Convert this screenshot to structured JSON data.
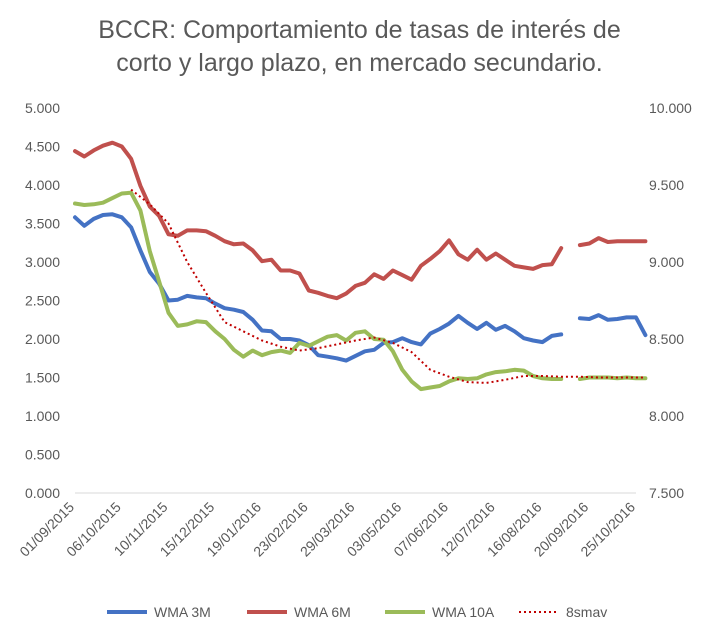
{
  "chart_data": {
    "type": "line",
    "title_lines": [
      "BCCR: Comportamiento de tasas de interés de",
      "corto y largo plazo, en mercado secundario."
    ],
    "y_left": {
      "min": 0,
      "max": 5,
      "step": 0.5,
      "tick_labels": [
        "0.000",
        "0.500",
        "1.000",
        "1.500",
        "2.000",
        "2.500",
        "3.000",
        "3.500",
        "4.000",
        "4.500",
        "5.000"
      ]
    },
    "y_right": {
      "min": 7.5,
      "max": 10,
      "step": 0.5,
      "tick_labels": [
        "7.500",
        "8.000",
        "8.500",
        "9.000",
        "9.500",
        "10.000"
      ]
    },
    "x_range": [
      "2015-09-01",
      "2016-10-25"
    ],
    "x_tick_labels": [
      "01/09/2015",
      "06/10/2015",
      "10/11/2015",
      "15/12/2015",
      "19/01/2016",
      "23/02/2016",
      "29/03/2016",
      "03/05/2016",
      "07/06/2016",
      "12/07/2016",
      "16/08/2016",
      "20/09/2016",
      "25/10/2016"
    ],
    "grid": false,
    "legend_position": "bottom",
    "series": [
      {
        "name": "WMA 3M",
        "axis": "left",
        "color": "#4472C4",
        "style": "solid",
        "points": [
          [
            "2015-09-01",
            3.58
          ],
          [
            "2015-09-08",
            3.47
          ],
          [
            "2015-09-15",
            3.56
          ],
          [
            "2015-09-22",
            3.61
          ],
          [
            "2015-09-29",
            3.62
          ],
          [
            "2015-10-06",
            3.58
          ],
          [
            "2015-10-13",
            3.45
          ],
          [
            "2015-10-20",
            3.15
          ],
          [
            "2015-10-27",
            2.87
          ],
          [
            "2015-11-03",
            2.72
          ],
          [
            "2015-11-10",
            2.5
          ],
          [
            "2015-11-17",
            2.51
          ],
          [
            "2015-11-24",
            2.56
          ],
          [
            "2015-12-01",
            2.54
          ],
          [
            "2015-12-08",
            2.53
          ],
          [
            "2015-12-15",
            2.46
          ],
          [
            "2015-12-22",
            2.4
          ],
          [
            "2015-12-29",
            2.38
          ],
          [
            "2016-01-05",
            2.35
          ],
          [
            "2016-01-12",
            2.25
          ],
          [
            "2016-01-19",
            2.11
          ],
          [
            "2016-01-26",
            2.1
          ],
          [
            "2016-02-02",
            2.0
          ],
          [
            "2016-02-09",
            2.0
          ],
          [
            "2016-02-16",
            1.98
          ],
          [
            "2016-02-23",
            1.92
          ],
          [
            "2016-03-01",
            1.79
          ],
          [
            "2016-03-08",
            1.77
          ],
          [
            "2016-03-15",
            1.75
          ],
          [
            "2016-03-22",
            1.72
          ],
          [
            "2016-03-29",
            1.78
          ],
          [
            "2016-04-05",
            1.84
          ],
          [
            "2016-04-12",
            1.86
          ],
          [
            "2016-04-19",
            1.95
          ],
          [
            "2016-04-26",
            1.96
          ],
          [
            "2016-05-03",
            2.01
          ],
          [
            "2016-05-10",
            1.96
          ],
          [
            "2016-05-17",
            1.93
          ],
          [
            "2016-05-24",
            2.07
          ],
          [
            "2016-05-31",
            2.13
          ],
          [
            "2016-06-07",
            2.2
          ],
          [
            "2016-06-14",
            2.3
          ],
          [
            "2016-06-21",
            2.21
          ],
          [
            "2016-06-28",
            2.13
          ],
          [
            "2016-07-05",
            2.21
          ],
          [
            "2016-07-12",
            2.12
          ],
          [
            "2016-07-19",
            2.17
          ],
          [
            "2016-07-26",
            2.1
          ],
          [
            "2016-08-02",
            2.01
          ],
          [
            "2016-08-09",
            1.98
          ],
          [
            "2016-08-16",
            1.96
          ],
          [
            "2016-08-23",
            2.04
          ],
          [
            "2016-08-30",
            2.06
          ],
          [
            "2016-09-06",
            null
          ],
          [
            "2016-09-13",
            2.27
          ],
          [
            "2016-09-20",
            2.26
          ],
          [
            "2016-09-27",
            2.31
          ],
          [
            "2016-10-04",
            2.25
          ],
          [
            "2016-10-11",
            2.26
          ],
          [
            "2016-10-18",
            2.28
          ],
          [
            "2016-10-25",
            2.28
          ],
          [
            "2016-11-01",
            2.05
          ]
        ]
      },
      {
        "name": "WMA 6M",
        "axis": "left",
        "color": "#C0504D",
        "style": "solid",
        "points": [
          [
            "2015-09-01",
            4.44
          ],
          [
            "2015-09-08",
            4.37
          ],
          [
            "2015-09-15",
            4.45
          ],
          [
            "2015-09-22",
            4.51
          ],
          [
            "2015-09-29",
            4.55
          ],
          [
            "2015-10-06",
            4.5
          ],
          [
            "2015-10-13",
            4.34
          ],
          [
            "2015-10-20",
            3.99
          ],
          [
            "2015-10-27",
            3.72
          ],
          [
            "2015-11-03",
            3.6
          ],
          [
            "2015-11-10",
            3.36
          ],
          [
            "2015-11-17",
            3.34
          ],
          [
            "2015-11-24",
            3.41
          ],
          [
            "2015-12-01",
            3.41
          ],
          [
            "2015-12-08",
            3.4
          ],
          [
            "2015-12-15",
            3.34
          ],
          [
            "2015-12-22",
            3.27
          ],
          [
            "2015-12-29",
            3.23
          ],
          [
            "2016-01-05",
            3.24
          ],
          [
            "2016-01-12",
            3.15
          ],
          [
            "2016-01-19",
            3.01
          ],
          [
            "2016-01-26",
            3.03
          ],
          [
            "2016-02-02",
            2.89
          ],
          [
            "2016-02-09",
            2.89
          ],
          [
            "2016-02-16",
            2.85
          ],
          [
            "2016-02-23",
            2.63
          ],
          [
            "2016-03-01",
            2.6
          ],
          [
            "2016-03-08",
            2.56
          ],
          [
            "2016-03-15",
            2.53
          ],
          [
            "2016-03-22",
            2.59
          ],
          [
            "2016-03-29",
            2.69
          ],
          [
            "2016-04-05",
            2.73
          ],
          [
            "2016-04-12",
            2.84
          ],
          [
            "2016-04-19",
            2.78
          ],
          [
            "2016-04-26",
            2.89
          ],
          [
            "2016-05-03",
            2.83
          ],
          [
            "2016-05-10",
            2.77
          ],
          [
            "2016-05-17",
            2.95
          ],
          [
            "2016-05-24",
            3.04
          ],
          [
            "2016-05-31",
            3.14
          ],
          [
            "2016-06-07",
            3.28
          ],
          [
            "2016-06-14",
            3.1
          ],
          [
            "2016-06-21",
            3.03
          ],
          [
            "2016-06-28",
            3.16
          ],
          [
            "2016-07-05",
            3.03
          ],
          [
            "2016-07-12",
            3.11
          ],
          [
            "2016-07-19",
            3.03
          ],
          [
            "2016-07-26",
            2.95
          ],
          [
            "2016-08-02",
            2.93
          ],
          [
            "2016-08-09",
            2.91
          ],
          [
            "2016-08-16",
            2.96
          ],
          [
            "2016-08-23",
            2.97
          ],
          [
            "2016-08-30",
            3.18
          ],
          [
            "2016-09-06",
            null
          ],
          [
            "2016-09-13",
            3.22
          ],
          [
            "2016-09-20",
            3.24
          ],
          [
            "2016-09-27",
            3.31
          ],
          [
            "2016-10-04",
            3.26
          ],
          [
            "2016-10-11",
            3.27
          ],
          [
            "2016-10-18",
            3.27
          ],
          [
            "2016-10-25",
            3.27
          ],
          [
            "2016-11-01",
            3.27
          ]
        ]
      },
      {
        "name": "WMA 10A",
        "axis": "left",
        "color": "#9BBB59",
        "style": "solid",
        "points": [
          [
            "2015-09-01",
            3.76
          ],
          [
            "2015-09-08",
            3.74
          ],
          [
            "2015-09-15",
            3.75
          ],
          [
            "2015-09-22",
            3.77
          ],
          [
            "2015-09-29",
            3.83
          ],
          [
            "2015-10-06",
            3.89
          ],
          [
            "2015-10-13",
            3.9
          ],
          [
            "2015-10-20",
            3.67
          ],
          [
            "2015-10-27",
            3.14
          ],
          [
            "2015-11-03",
            2.75
          ],
          [
            "2015-11-10",
            2.34
          ],
          [
            "2015-11-17",
            2.17
          ],
          [
            "2015-11-24",
            2.19
          ],
          [
            "2015-12-01",
            2.23
          ],
          [
            "2015-12-08",
            2.22
          ],
          [
            "2015-12-15",
            2.1
          ],
          [
            "2015-12-22",
            2.0
          ],
          [
            "2015-12-29",
            1.86
          ],
          [
            "2016-01-05",
            1.77
          ],
          [
            "2016-01-12",
            1.85
          ],
          [
            "2016-01-19",
            1.79
          ],
          [
            "2016-01-26",
            1.83
          ],
          [
            "2016-02-02",
            1.85
          ],
          [
            "2016-02-09",
            1.82
          ],
          [
            "2016-02-16",
            1.95
          ],
          [
            "2016-02-23",
            1.91
          ],
          [
            "2016-03-01",
            1.97
          ],
          [
            "2016-03-08",
            2.03
          ],
          [
            "2016-03-15",
            2.05
          ],
          [
            "2016-03-22",
            1.98
          ],
          [
            "2016-03-29",
            2.08
          ],
          [
            "2016-04-05",
            2.1
          ],
          [
            "2016-04-12",
            2.0
          ],
          [
            "2016-04-19",
            1.99
          ],
          [
            "2016-04-26",
            1.84
          ],
          [
            "2016-05-03",
            1.6
          ],
          [
            "2016-05-10",
            1.45
          ],
          [
            "2016-05-17",
            1.35
          ],
          [
            "2016-05-24",
            1.37
          ],
          [
            "2016-05-31",
            1.39
          ],
          [
            "2016-06-07",
            1.45
          ],
          [
            "2016-06-14",
            1.49
          ],
          [
            "2016-06-21",
            1.48
          ],
          [
            "2016-06-28",
            1.49
          ],
          [
            "2016-07-05",
            1.54
          ],
          [
            "2016-07-12",
            1.57
          ],
          [
            "2016-07-19",
            1.58
          ],
          [
            "2016-07-26",
            1.6
          ],
          [
            "2016-08-02",
            1.59
          ],
          [
            "2016-08-09",
            1.52
          ],
          [
            "2016-08-16",
            1.49
          ],
          [
            "2016-08-23",
            1.48
          ],
          [
            "2016-08-30",
            1.48
          ],
          [
            "2016-09-06",
            null
          ],
          [
            "2016-09-13",
            1.48
          ],
          [
            "2016-09-20",
            1.5
          ],
          [
            "2016-09-27",
            1.5
          ],
          [
            "2016-10-04",
            1.5
          ],
          [
            "2016-10-11",
            1.49
          ],
          [
            "2016-10-18",
            1.5
          ],
          [
            "2016-10-25",
            1.49
          ],
          [
            "2016-11-01",
            1.49
          ]
        ]
      },
      {
        "name": "8smav",
        "axis": "left",
        "color": "#C00000",
        "style": "dotted",
        "points": [
          [
            "2015-10-13",
            3.94
          ],
          [
            "2015-10-27",
            3.75
          ],
          [
            "2015-11-10",
            3.5
          ],
          [
            "2015-11-24",
            3.0
          ],
          [
            "2015-12-08",
            2.6
          ],
          [
            "2015-12-22",
            2.22
          ],
          [
            "2016-01-05",
            2.1
          ],
          [
            "2016-01-19",
            1.98
          ],
          [
            "2016-02-02",
            1.9
          ],
          [
            "2016-02-16",
            1.85
          ],
          [
            "2016-03-01",
            1.88
          ],
          [
            "2016-03-15",
            1.93
          ],
          [
            "2016-03-29",
            1.98
          ],
          [
            "2016-04-12",
            2.02
          ],
          [
            "2016-04-26",
            1.95
          ],
          [
            "2016-05-10",
            1.83
          ],
          [
            "2016-05-24",
            1.6
          ],
          [
            "2016-06-07",
            1.51
          ],
          [
            "2016-06-21",
            1.44
          ],
          [
            "2016-07-05",
            1.43
          ],
          [
            "2016-07-19",
            1.47
          ],
          [
            "2016-08-02",
            1.52
          ],
          [
            "2016-08-16",
            1.52
          ],
          [
            "2016-08-30",
            1.51
          ],
          [
            "2016-09-13",
            1.51
          ],
          [
            "2016-09-27",
            1.5
          ],
          [
            "2016-10-11",
            1.5
          ],
          [
            "2016-10-25",
            1.5
          ],
          [
            "2016-11-01",
            1.5
          ]
        ]
      }
    ]
  }
}
